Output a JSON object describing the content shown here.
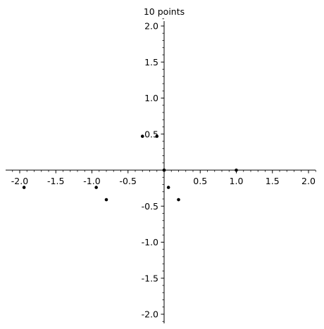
{
  "chart_data": {
    "type": "scatter",
    "title": "10 points",
    "xlabel": "",
    "ylabel": "",
    "xlim": [
      -2.1,
      2.1
    ],
    "ylim": [
      -2.1,
      2.1
    ],
    "grid": false,
    "axes_style": "cross-at-origin",
    "x_tick_labels": [
      "-2.0",
      "-1.5",
      "-1.0",
      "-0.5",
      "0.5",
      "1.0",
      "1.5",
      "2.0"
    ],
    "y_tick_labels": [
      "-2.0",
      "-1.5",
      "-1.0",
      "-0.5",
      "0.5",
      "1.0",
      "1.5",
      "2.0"
    ],
    "series": [
      {
        "color": "#000000",
        "points": [
          {
            "x": 1.0,
            "y": 0.0
          },
          {
            "x": 0.06,
            "y": -0.24
          },
          {
            "x": 0.2,
            "y": -0.41
          },
          {
            "x": -0.3,
            "y": 0.47
          },
          {
            "x": -0.1,
            "y": 0.47
          },
          {
            "x": -0.94,
            "y": -0.24
          },
          {
            "x": -0.8,
            "y": -0.41
          },
          {
            "x": -1.94,
            "y": -0.24
          },
          {
            "x": 0.0,
            "y": 0.0
          },
          {
            "x": 0.0,
            "y": 0.0
          }
        ]
      }
    ]
  }
}
